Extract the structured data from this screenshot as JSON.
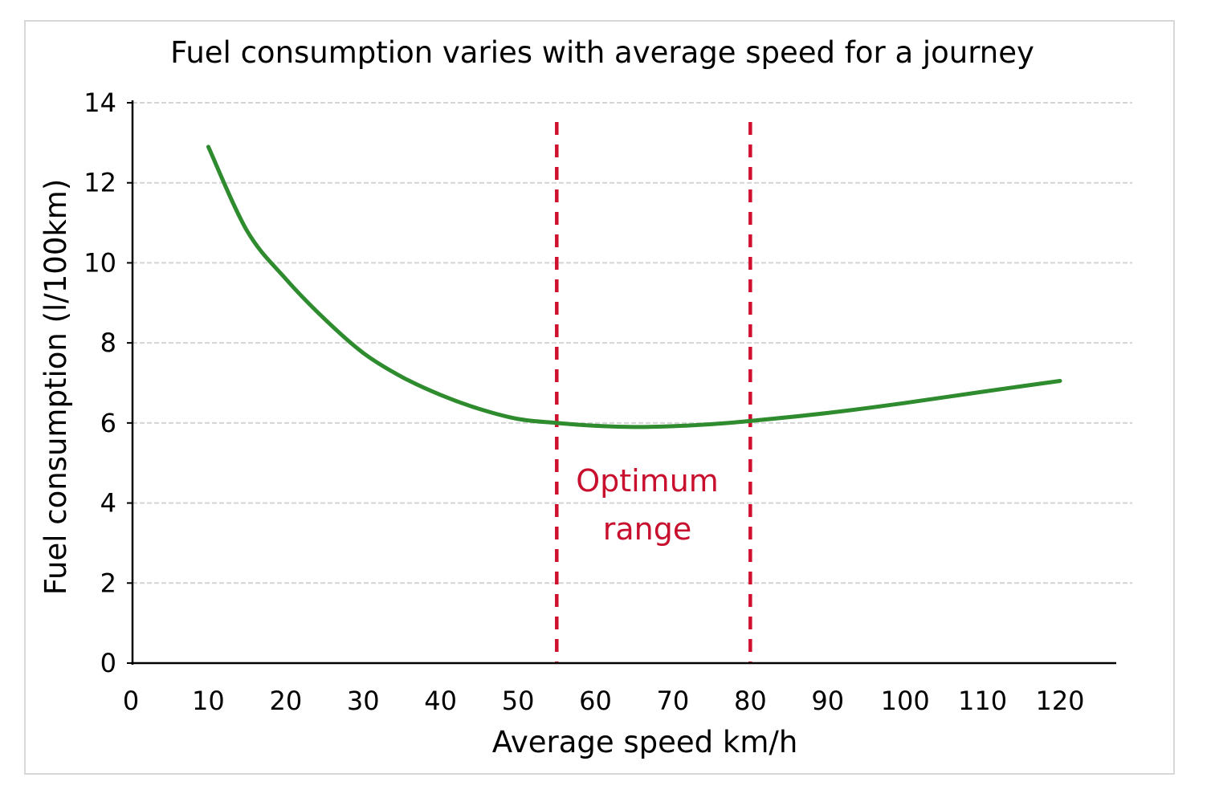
{
  "chart_data": {
    "type": "line",
    "title": "Fuel consumption varies with average speed for a journey",
    "xlabel": "Average speed km/h",
    "ylabel": "Fuel consumption (l/100km)",
    "xlim": [
      0,
      120
    ],
    "ylim": [
      0,
      14
    ],
    "x_ticks": [
      0,
      10,
      20,
      30,
      40,
      50,
      60,
      70,
      80,
      90,
      100,
      110,
      120
    ],
    "y_ticks": [
      0,
      2,
      4,
      6,
      8,
      10,
      12,
      14
    ],
    "grid": "horizontal",
    "series": [
      {
        "color": "#2e8b2e",
        "x": [
          10,
          15,
          20,
          25,
          30,
          35,
          40,
          45,
          50,
          55,
          60,
          65,
          70,
          75,
          80,
          90,
          100,
          110,
          120
        ],
        "y": [
          12.9,
          10.8,
          9.6,
          8.6,
          7.75,
          7.15,
          6.7,
          6.35,
          6.1,
          6.0,
          5.93,
          5.9,
          5.92,
          5.97,
          6.05,
          6.25,
          6.5,
          6.78,
          7.05
        ]
      }
    ],
    "reference_lines": [
      {
        "axis": "x",
        "value": 55,
        "style": "dashed",
        "color": "#d0102e"
      },
      {
        "axis": "x",
        "value": 80,
        "style": "dashed",
        "color": "#d0102e"
      }
    ],
    "annotations": [
      {
        "text": [
          "Optimum",
          "range"
        ],
        "color": "#c8102e"
      }
    ]
  }
}
